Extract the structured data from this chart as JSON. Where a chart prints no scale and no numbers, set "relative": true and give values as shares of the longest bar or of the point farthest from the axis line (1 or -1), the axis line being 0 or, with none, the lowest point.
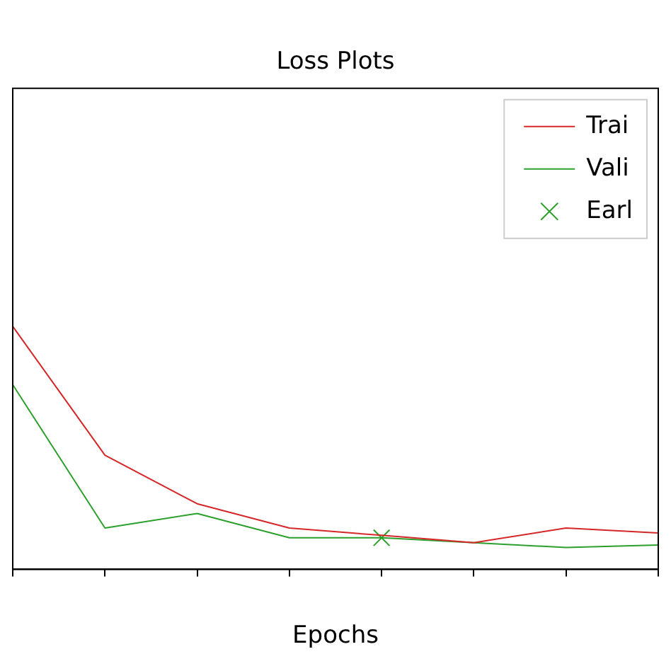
{
  "chart_data": {
    "type": "line",
    "title": "Loss Plots",
    "xlabel": "Epochs",
    "relative": true,
    "categories": [
      null,
      null,
      null,
      null,
      null,
      null,
      null,
      null
    ],
    "series": [
      {
        "name": "Trai",
        "color": "#d62728",
        "values": [
          1,
          0.47,
          0.27,
          0.17,
          0.14,
          0.11,
          0.17,
          0.15
        ]
      },
      {
        "name": "Vali",
        "color": "#2ca02c",
        "values": [
          0.76,
          0.17,
          0.23,
          0.13,
          0.13,
          0.11,
          0.09,
          0.1
        ]
      },
      {
        "name": "Earl",
        "marker": "cross",
        "color": "#2ca02c",
        "values": [
          null,
          null,
          null,
          null,
          0.13,
          null,
          null,
          null
        ]
      }
    ],
    "legend": "top right",
    "grid": false
  }
}
